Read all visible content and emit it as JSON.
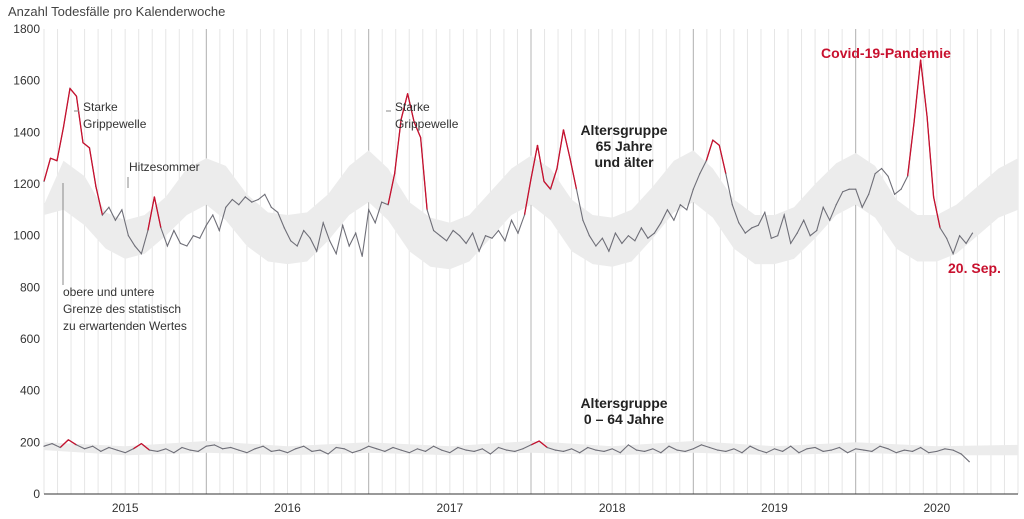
{
  "chart_data": {
    "type": "line",
    "title": "Anzahl Todesfälle pro Kalenderwoche",
    "ylim": [
      0,
      1800
    ],
    "yticks": [
      0,
      200,
      400,
      600,
      800,
      1000,
      1200,
      1400,
      1600,
      1800
    ],
    "xlim": [
      2014.5,
      2020.5
    ],
    "xticks": [
      {
        "label": "2015",
        "x": 2015.0
      },
      {
        "label": "2016",
        "x": 2016.0
      },
      {
        "label": "2017",
        "x": 2017.0
      },
      {
        "label": "2018",
        "x": 2018.0
      },
      {
        "label": "2019",
        "x": 2019.0
      },
      {
        "label": "2020",
        "x": 2020.0
      }
    ],
    "year_dividers": [
      2015.5,
      2016.5,
      2017.5,
      2018.5,
      2019.5
    ],
    "colors": {
      "line": "#6f6f78",
      "excess": "#c8102e",
      "band": "#ececec",
      "grid": "#e6e6e6",
      "divider": "#b5b5b5"
    },
    "series": [
      {
        "name": "Altersgruppe 65 Jahre und älter",
        "band_x": [
          2014.5,
          2014.62,
          2014.75,
          2014.88,
          2015.0,
          2015.12,
          2015.25,
          2015.38,
          2015.5,
          2015.62,
          2015.75,
          2015.88,
          2016.0,
          2016.12,
          2016.25,
          2016.38,
          2016.5,
          2016.62,
          2016.75,
          2016.88,
          2017.0,
          2017.12,
          2017.25,
          2017.38,
          2017.5,
          2017.62,
          2017.75,
          2017.88,
          2018.0,
          2018.12,
          2018.25,
          2018.38,
          2018.5,
          2018.62,
          2018.75,
          2018.88,
          2019.0,
          2019.12,
          2019.25,
          2019.38,
          2019.5,
          2019.62,
          2019.75,
          2019.88,
          2020.0,
          2020.12,
          2020.25,
          2020.38,
          2020.5
        ],
        "band_upper": [
          1120,
          1290,
          1230,
          1090,
          1060,
          1080,
          1150,
          1260,
          1300,
          1270,
          1160,
          1090,
          1080,
          1090,
          1160,
          1270,
          1330,
          1260,
          1130,
          1070,
          1050,
          1080,
          1170,
          1260,
          1310,
          1260,
          1140,
          1080,
          1070,
          1100,
          1190,
          1290,
          1330,
          1260,
          1140,
          1080,
          1080,
          1110,
          1200,
          1280,
          1320,
          1270,
          1140,
          1080,
          1080,
          1120,
          1190,
          1260,
          1300
        ],
        "band_lower": [
          1080,
          1100,
          1040,
          950,
          910,
          930,
          1000,
          1080,
          1120,
          1060,
          960,
          900,
          890,
          900,
          980,
          1080,
          1130,
          1060,
          940,
          880,
          870,
          900,
          990,
          1080,
          1120,
          1060,
          940,
          890,
          880,
          900,
          990,
          1090,
          1130,
          1070,
          950,
          890,
          890,
          910,
          990,
          1080,
          1120,
          1070,
          950,
          900,
          900,
          930,
          1000,
          1070,
          1100
        ],
        "x": [
          2014.5,
          2014.54,
          2014.58,
          2014.62,
          2014.66,
          2014.7,
          2014.74,
          2014.78,
          2014.82,
          2014.86,
          2014.9,
          2014.94,
          2014.98,
          2015.02,
          2015.06,
          2015.1,
          2015.14,
          2015.18,
          2015.22,
          2015.26,
          2015.3,
          2015.34,
          2015.38,
          2015.42,
          2015.46,
          2015.5,
          2015.54,
          2015.58,
          2015.62,
          2015.66,
          2015.7,
          2015.74,
          2015.78,
          2015.82,
          2015.86,
          2015.9,
          2015.94,
          2015.98,
          2016.02,
          2016.06,
          2016.1,
          2016.14,
          2016.18,
          2016.22,
          2016.26,
          2016.3,
          2016.34,
          2016.38,
          2016.42,
          2016.46,
          2016.5,
          2016.54,
          2016.58,
          2016.62,
          2016.66,
          2016.7,
          2016.74,
          2016.78,
          2016.82,
          2016.86,
          2016.9,
          2016.94,
          2016.98,
          2017.02,
          2017.06,
          2017.1,
          2017.14,
          2017.18,
          2017.22,
          2017.26,
          2017.3,
          2017.34,
          2017.38,
          2017.42,
          2017.46,
          2017.5,
          2017.54,
          2017.58,
          2017.62,
          2017.66,
          2017.7,
          2017.74,
          2017.78,
          2017.82,
          2017.86,
          2017.9,
          2017.94,
          2017.98,
          2018.02,
          2018.06,
          2018.1,
          2018.14,
          2018.18,
          2018.22,
          2018.26,
          2018.3,
          2018.34,
          2018.38,
          2018.42,
          2018.46,
          2018.5,
          2018.54,
          2018.58,
          2018.62,
          2018.66,
          2018.7,
          2018.74,
          2018.78,
          2018.82,
          2018.86,
          2018.9,
          2018.94,
          2018.98,
          2019.02,
          2019.06,
          2019.1,
          2019.14,
          2019.18,
          2019.22,
          2019.26,
          2019.3,
          2019.34,
          2019.38,
          2019.42,
          2019.46,
          2019.5,
          2019.54,
          2019.58,
          2019.62,
          2019.66,
          2019.7,
          2019.74,
          2019.78,
          2019.82,
          2019.86,
          2019.9,
          2019.94,
          2019.98,
          2020.02,
          2020.06,
          2020.1,
          2020.14,
          2020.18,
          2020.22
        ],
        "y": [
          1210,
          1300,
          1290,
          1420,
          1570,
          1540,
          1360,
          1340,
          1190,
          1080,
          1110,
          1060,
          1100,
          1000,
          960,
          930,
          1020,
          1150,
          1030,
          960,
          1020,
          970,
          960,
          1000,
          990,
          1040,
          1080,
          1020,
          1110,
          1140,
          1120,
          1150,
          1130,
          1140,
          1160,
          1110,
          1090,
          1030,
          980,
          960,
          1020,
          990,
          940,
          1050,
          980,
          930,
          1040,
          960,
          1010,
          920,
          1100,
          1050,
          1130,
          1120,
          1240,
          1450,
          1550,
          1440,
          1380,
          1100,
          1020,
          1000,
          980,
          1020,
          1000,
          970,
          1010,
          940,
          1000,
          990,
          1020,
          980,
          1060,
          1010,
          1080,
          1220,
          1350,
          1210,
          1180,
          1260,
          1410,
          1300,
          1180,
          1060,
          1000,
          960,
          990,
          940,
          1010,
          970,
          1000,
          980,
          1030,
          990,
          1010,
          1050,
          1100,
          1060,
          1120,
          1100,
          1180,
          1240,
          1290,
          1370,
          1350,
          1240,
          1120,
          1050,
          1010,
          1030,
          1040,
          1090,
          990,
          1000,
          1080,
          970,
          1010,
          1060,
          1000,
          1020,
          1110,
          1060,
          1120,
          1170,
          1180,
          1180,
          1110,
          1160,
          1240,
          1260,
          1230,
          1160,
          1180,
          1230,
          1440,
          1680,
          1460,
          1150,
          1030,
          990,
          930,
          1000,
          970,
          1010
        ],
        "excess_mask": [
          0,
          1,
          1,
          1,
          1,
          1,
          1,
          1,
          1,
          0,
          0,
          0,
          0,
          0,
          0,
          0,
          0,
          1,
          0,
          0,
          0,
          0,
          0,
          0,
          0,
          0,
          0,
          0,
          0,
          0,
          0,
          0,
          0,
          0,
          0,
          0,
          0,
          0,
          0,
          0,
          0,
          0,
          0,
          0,
          0,
          0,
          0,
          0,
          0,
          0,
          0,
          0,
          0,
          0,
          1,
          1,
          1,
          1,
          1,
          0,
          0,
          0,
          0,
          0,
          0,
          0,
          0,
          0,
          0,
          0,
          0,
          0,
          0,
          0,
          0,
          1,
          1,
          1,
          0,
          1,
          1,
          1,
          0,
          0,
          0,
          0,
          0,
          0,
          0,
          0,
          0,
          0,
          0,
          0,
          0,
          0,
          0,
          0,
          0,
          0,
          0,
          0,
          0,
          1,
          1,
          0,
          0,
          0,
          0,
          0,
          0,
          0,
          0,
          0,
          0,
          0,
          0,
          0,
          0,
          0,
          0,
          0,
          0,
          0,
          0,
          0,
          0,
          0,
          0,
          0,
          0,
          0,
          0,
          0,
          1,
          1,
          1,
          1,
          0,
          0,
          0,
          0,
          0,
          0
        ]
      },
      {
        "name": "Altersgruppe 0 – 64 Jahre",
        "band_x": [
          2014.5,
          2015.0,
          2015.5,
          2016.0,
          2016.5,
          2017.0,
          2017.5,
          2018.0,
          2018.5,
          2019.0,
          2019.5,
          2020.0,
          2020.5
        ],
        "band_upper": [
          200,
          185,
          205,
          185,
          200,
          185,
          205,
          185,
          205,
          185,
          200,
          185,
          190
        ],
        "band_lower": [
          170,
          150,
          160,
          150,
          160,
          150,
          160,
          150,
          160,
          150,
          160,
          150,
          150
        ],
        "x": [
          2014.5,
          2014.55,
          2014.6,
          2014.65,
          2014.7,
          2014.75,
          2014.8,
          2014.85,
          2014.9,
          2014.95,
          2015.0,
          2015.05,
          2015.1,
          2015.15,
          2015.2,
          2015.25,
          2015.3,
          2015.35,
          2015.4,
          2015.45,
          2015.5,
          2015.55,
          2015.6,
          2015.65,
          2015.7,
          2015.75,
          2015.8,
          2015.85,
          2015.9,
          2015.95,
          2016.0,
          2016.05,
          2016.1,
          2016.15,
          2016.2,
          2016.25,
          2016.3,
          2016.35,
          2016.4,
          2016.45,
          2016.5,
          2016.55,
          2016.6,
          2016.65,
          2016.7,
          2016.75,
          2016.8,
          2016.85,
          2016.9,
          2016.95,
          2017.0,
          2017.05,
          2017.1,
          2017.15,
          2017.2,
          2017.25,
          2017.3,
          2017.35,
          2017.4,
          2017.45,
          2017.5,
          2017.55,
          2017.6,
          2017.65,
          2017.7,
          2017.75,
          2017.8,
          2017.85,
          2017.9,
          2017.95,
          2018.0,
          2018.05,
          2018.1,
          2018.15,
          2018.2,
          2018.25,
          2018.3,
          2018.35,
          2018.4,
          2018.45,
          2018.5,
          2018.55,
          2018.6,
          2018.65,
          2018.7,
          2018.75,
          2018.8,
          2018.85,
          2018.9,
          2018.95,
          2019.0,
          2019.05,
          2019.1,
          2019.15,
          2019.2,
          2019.25,
          2019.3,
          2019.35,
          2019.4,
          2019.45,
          2019.5,
          2019.55,
          2019.6,
          2019.65,
          2019.7,
          2019.75,
          2019.8,
          2019.85,
          2019.9,
          2019.95,
          2020.0,
          2020.05,
          2020.1,
          2020.15,
          2020.2
        ],
        "y": [
          185,
          195,
          180,
          210,
          190,
          175,
          185,
          165,
          180,
          170,
          160,
          175,
          195,
          170,
          165,
          175,
          160,
          180,
          170,
          165,
          185,
          190,
          175,
          180,
          170,
          160,
          175,
          185,
          165,
          170,
          160,
          175,
          185,
          165,
          170,
          155,
          180,
          175,
          160,
          170,
          185,
          175,
          165,
          180,
          170,
          160,
          175,
          165,
          185,
          170,
          160,
          180,
          170,
          165,
          175,
          155,
          180,
          170,
          165,
          175,
          190,
          205,
          180,
          170,
          165,
          175,
          160,
          180,
          170,
          165,
          175,
          160,
          190,
          170,
          165,
          175,
          160,
          185,
          170,
          165,
          175,
          190,
          180,
          170,
          165,
          175,
          160,
          185,
          170,
          160,
          175,
          165,
          185,
          160,
          175,
          180,
          165,
          170,
          180,
          160,
          175,
          170,
          165,
          185,
          175,
          160,
          170,
          165,
          180,
          160,
          165,
          175,
          170,
          155,
          125
        ],
        "excess_mask": [
          0,
          0,
          0,
          1,
          0,
          0,
          0,
          0,
          0,
          0,
          0,
          0,
          1,
          0,
          0,
          0,
          0,
          0,
          0,
          0,
          0,
          0,
          0,
          0,
          0,
          0,
          0,
          0,
          0,
          0,
          0,
          0,
          0,
          0,
          0,
          0,
          0,
          0,
          0,
          0,
          0,
          0,
          0,
          0,
          0,
          0,
          0,
          0,
          0,
          0,
          0,
          0,
          0,
          0,
          0,
          0,
          0,
          0,
          0,
          0,
          0,
          1,
          0,
          0,
          0,
          0,
          0,
          0,
          0,
          0,
          0,
          0,
          0,
          0,
          0,
          0,
          0,
          0,
          0,
          0,
          0,
          0,
          0,
          0,
          0,
          0,
          0,
          0,
          0,
          0,
          0,
          0,
          0,
          0,
          0,
          0,
          0,
          0,
          0,
          0,
          0,
          0,
          0,
          0,
          0,
          0,
          0,
          0,
          0,
          0,
          0,
          0,
          0,
          0,
          0
        ]
      }
    ],
    "annotations": [
      {
        "id": "grippe-1",
        "lines": [
          "Starke",
          "Grippewelle"
        ]
      },
      {
        "id": "hitze",
        "lines": [
          "Hitzesommer"
        ]
      },
      {
        "id": "grippe-2",
        "lines": [
          "Starke",
          "Grippewelle"
        ]
      },
      {
        "id": "band-note",
        "lines": [
          "obere und untere",
          "Grenze des statistisch",
          "zu erwartenden Wertes"
        ]
      },
      {
        "id": "group-65",
        "lines": [
          "Altersgruppe",
          "65 Jahre",
          "und älter"
        ]
      },
      {
        "id": "group-064",
        "lines": [
          "Altersgruppe",
          "0 – 64 Jahre"
        ]
      },
      {
        "id": "covid",
        "lines": [
          "Covid-19-Pandemie"
        ]
      },
      {
        "id": "date",
        "lines": [
          "20. Sep."
        ]
      }
    ]
  }
}
